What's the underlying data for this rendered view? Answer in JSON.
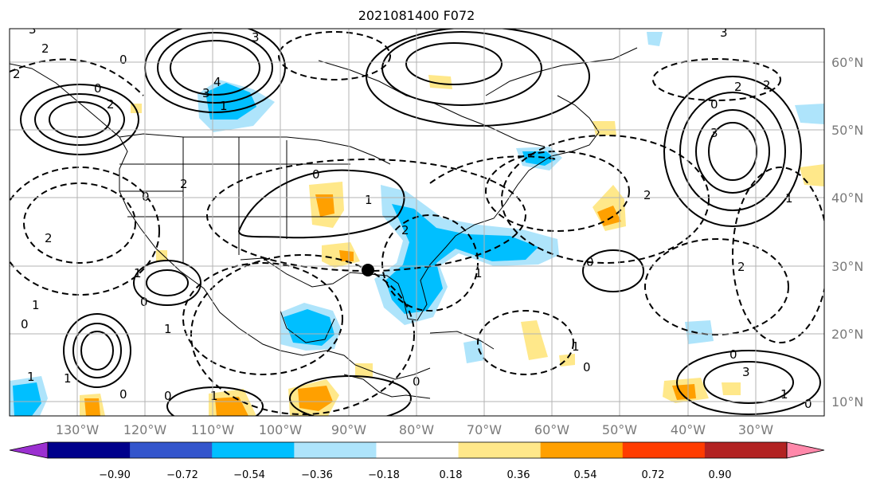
{
  "title": "2021081400 F072",
  "lon_labels": [
    "130°W",
    "120°W",
    "110°W",
    "100°W",
    "90°W",
    "80°W",
    "70°W",
    "60°W",
    "50°W",
    "40°W",
    "30°W"
  ],
  "lat_labels": [
    "60°N",
    "50°N",
    "40°N",
    "30°N",
    "20°N",
    "10°N"
  ],
  "colorbar": {
    "ticks": [
      "−0.90",
      "−0.72",
      "−0.54",
      "−0.36",
      "−0.18",
      "0.18",
      "0.36",
      "0.54",
      "0.72",
      "0.90"
    ],
    "colors": [
      "#9b30d0",
      "#00008b",
      "#3355cc",
      "#00bfff",
      "#aee4fb",
      "#ffffff",
      "#ffe88a",
      "#ffa000",
      "#ff3c00",
      "#b22222",
      "#ff88aa"
    ]
  },
  "contour_labels": [
    "3",
    "2",
    "0",
    "2",
    "3",
    "4",
    "3",
    "1",
    "2",
    "0",
    "0",
    "2",
    "3",
    "2",
    "3",
    "0",
    "2",
    "1",
    "3",
    "0",
    "2",
    "1",
    "0",
    "1",
    "0",
    "2",
    "0",
    "0",
    "1",
    "1",
    "0",
    "1",
    "0",
    "2",
    "1",
    "1",
    "0",
    "1",
    "0",
    "1",
    "2",
    "1",
    "0"
  ],
  "marker": "storm-center",
  "colors": {
    "contour": "#000000",
    "grid": "#b3b3b3",
    "land_edge": "#000000"
  }
}
